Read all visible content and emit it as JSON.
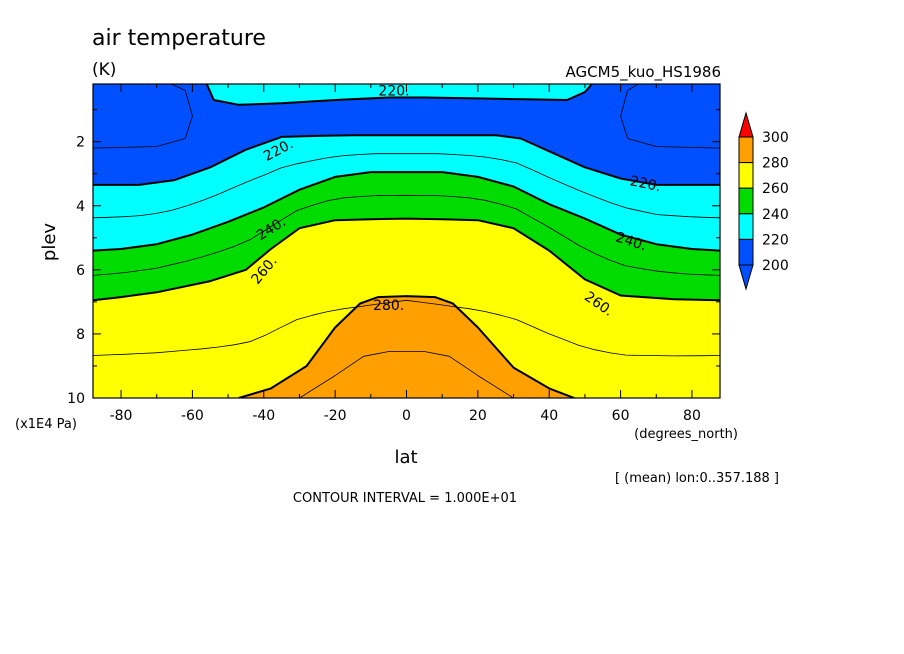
{
  "chart_data": {
    "type": "filled_contour",
    "title": "air temperature",
    "units": "(K)",
    "run_label": "AGCM5_kuo_HS1986",
    "xlabel": "lat",
    "xunits": "(degrees_north)",
    "ylabel": "plev",
    "yunits": "(x1E4 Pa)",
    "xlim": [
      -87.86,
      87.86
    ],
    "ylim": [
      0.2,
      10
    ],
    "y_reversed": true,
    "xticks": [
      -80,
      -60,
      -40,
      -20,
      0,
      20,
      40,
      60,
      80
    ],
    "yticks": [
      2,
      4,
      6,
      8,
      10
    ],
    "mean_note": "[ (mean) lon:0..357.188 ]",
    "contour_interval_text": "CONTOUR INTERVAL = 1.000E+01",
    "contour_labels": [
      "220.",
      "220.",
      "220.",
      "240.",
      "240.",
      "260.",
      "260.",
      "280."
    ],
    "colorbar": {
      "levels": [
        200,
        220,
        240,
        260,
        280,
        300
      ],
      "colors": {
        "below_200": "#0050ff",
        "200_220": "#0050ff",
        "220_240": "#00ffff",
        "240_260": "#00dc00",
        "260_280": "#ffff00",
        "280_300": "#ffa000",
        "above_300": "#ff0000"
      }
    },
    "contours": {
      "t280_top": [
        [
          -47,
          10
        ],
        [
          -38,
          9.7
        ],
        [
          -28,
          9.0
        ],
        [
          -20,
          7.8
        ],
        [
          -13,
          7.05
        ],
        [
          -8,
          6.85
        ],
        [
          0,
          6.82
        ],
        [
          8,
          6.85
        ],
        [
          13,
          7.05
        ],
        [
          20,
          7.8
        ],
        [
          30,
          9.05
        ],
        [
          40,
          9.7
        ],
        [
          47,
          10
        ]
      ],
      "t260_top": [
        [
          -87.86,
          6.95
        ],
        [
          -80,
          6.85
        ],
        [
          -70,
          6.7
        ],
        [
          -55,
          6.35
        ],
        [
          -45,
          6.0
        ],
        [
          -38,
          5.35
        ],
        [
          -30,
          4.7
        ],
        [
          -20,
          4.45
        ],
        [
          -10,
          4.42
        ],
        [
          0,
          4.4
        ],
        [
          10,
          4.42
        ],
        [
          20,
          4.45
        ],
        [
          30,
          4.7
        ],
        [
          40,
          5.4
        ],
        [
          50,
          6.3
        ],
        [
          60,
          6.8
        ],
        [
          75,
          6.92
        ],
        [
          87.86,
          6.95
        ]
      ],
      "t240_top": [
        [
          -87.86,
          5.4
        ],
        [
          -80,
          5.35
        ],
        [
          -70,
          5.2
        ],
        [
          -60,
          4.9
        ],
        [
          -50,
          4.5
        ],
        [
          -40,
          4.05
        ],
        [
          -30,
          3.5
        ],
        [
          -20,
          3.1
        ],
        [
          -10,
          2.95
        ],
        [
          0,
          2.95
        ],
        [
          10,
          2.95
        ],
        [
          20,
          3.1
        ],
        [
          30,
          3.4
        ],
        [
          40,
          3.95
        ],
        [
          50,
          4.4
        ],
        [
          60,
          4.9
        ],
        [
          70,
          5.2
        ],
        [
          80,
          5.35
        ],
        [
          87.86,
          5.4
        ]
      ],
      "t220_top": [
        [
          -87.86,
          3.35
        ],
        [
          -75,
          3.35
        ],
        [
          -65,
          3.2
        ],
        [
          -55,
          2.8
        ],
        [
          -45,
          2.25
        ],
        [
          -35,
          1.85
        ],
        [
          -25,
          1.82
        ],
        [
          -15,
          1.8
        ],
        [
          0,
          1.8
        ],
        [
          15,
          1.8
        ],
        [
          25,
          1.8
        ],
        [
          32,
          1.9
        ],
        [
          40,
          2.3
        ],
        [
          50,
          2.8
        ],
        [
          60,
          3.15
        ],
        [
          70,
          3.35
        ],
        [
          87.86,
          3.35
        ]
      ],
      "t220_upper": [
        [
          -56,
          0.2
        ],
        [
          -54,
          0.7
        ],
        [
          -47,
          0.85
        ],
        [
          -35,
          0.8
        ],
        [
          -20,
          0.7
        ],
        [
          -5,
          0.62
        ],
        [
          5,
          0.62
        ],
        [
          20,
          0.65
        ],
        [
          35,
          0.68
        ],
        [
          45,
          0.7
        ],
        [
          50,
          0.45
        ],
        [
          52,
          0.2
        ]
      ]
    }
  }
}
